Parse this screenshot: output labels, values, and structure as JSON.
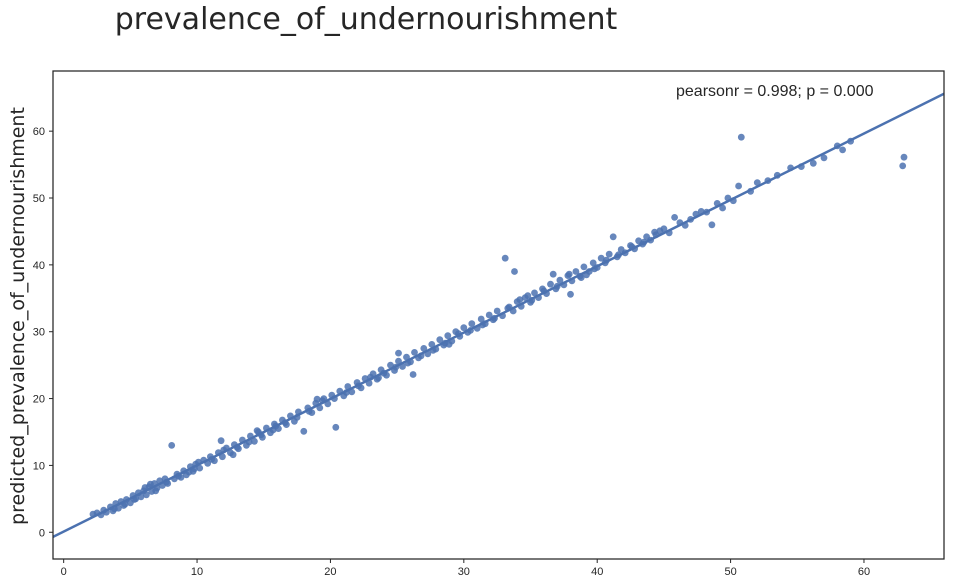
{
  "chart_data": {
    "type": "scatter",
    "title": "prevalence_of_undernourishment",
    "xlabel": "",
    "ylabel": "predicted_prevalence_of_undernourishment",
    "xlim": [
      -0.8,
      66
    ],
    "ylim": [
      -4,
      69
    ],
    "x_ticks": [
      0,
      10,
      20,
      30,
      40,
      50,
      60
    ],
    "y_ticks": [
      0,
      10,
      20,
      30,
      40,
      50,
      60
    ],
    "annotation": "pearsonr = 0.998; p = 0.000",
    "grid": false,
    "regression_line": {
      "x": [
        -0.8,
        66
      ],
      "y": [
        -0.7,
        65.6
      ]
    },
    "colors": {
      "points": "#4c72b0",
      "line": "#4c72b0",
      "axes": "#262626"
    },
    "points": [
      [
        2.2,
        2.7
      ],
      [
        2.5,
        2.9
      ],
      [
        2.8,
        2.6
      ],
      [
        3.0,
        3.3
      ],
      [
        3.2,
        3.0
      ],
      [
        3.5,
        3.8
      ],
      [
        3.7,
        3.2
      ],
      [
        3.9,
        4.3
      ],
      [
        4.1,
        3.6
      ],
      [
        4.3,
        4.6
      ],
      [
        4.5,
        4.0
      ],
      [
        4.7,
        4.9
      ],
      [
        5.0,
        4.4
      ],
      [
        5.2,
        5.5
      ],
      [
        5.4,
        5.0
      ],
      [
        5.6,
        5.9
      ],
      [
        5.8,
        5.3
      ],
      [
        6.0,
        6.2
      ],
      [
        6.2,
        5.6
      ],
      [
        6.4,
        6.8
      ],
      [
        6.6,
        6.1
      ],
      [
        6.8,
        7.3
      ],
      [
        7.0,
        6.6
      ],
      [
        7.2,
        7.7
      ],
      [
        7.4,
        7.0
      ],
      [
        7.6,
        8.0
      ],
      [
        7.8,
        7.3
      ],
      [
        8.1,
        13.0
      ],
      [
        8.3,
        8.0
      ],
      [
        8.5,
        8.7
      ],
      [
        8.8,
        8.2
      ],
      [
        9.0,
        9.2
      ],
      [
        9.2,
        8.6
      ],
      [
        9.5,
        9.8
      ],
      [
        9.7,
        9.1
      ],
      [
        9.9,
        10.2
      ],
      [
        10.2,
        9.6
      ],
      [
        10.5,
        10.8
      ],
      [
        10.8,
        10.3
      ],
      [
        11.0,
        11.3
      ],
      [
        11.3,
        10.7
      ],
      [
        11.6,
        11.9
      ],
      [
        11.9,
        11.3
      ],
      [
        12.2,
        12.6
      ],
      [
        12.5,
        11.9
      ],
      [
        12.8,
        13.1
      ],
      [
        13.1,
        12.5
      ],
      [
        13.4,
        13.8
      ],
      [
        13.7,
        13.0
      ],
      [
        14.0,
        14.4
      ],
      [
        14.3,
        13.6
      ],
      [
        14.6,
        15.0
      ],
      [
        14.9,
        14.2
      ],
      [
        15.2,
        15.6
      ],
      [
        15.5,
        14.9
      ],
      [
        15.8,
        16.2
      ],
      [
        16.1,
        15.5
      ],
      [
        16.4,
        16.8
      ],
      [
        16.7,
        16.1
      ],
      [
        17.0,
        17.4
      ],
      [
        17.3,
        16.6
      ],
      [
        17.6,
        18.0
      ],
      [
        18.0,
        15.1
      ],
      [
        18.3,
        18.6
      ],
      [
        18.6,
        17.9
      ],
      [
        18.9,
        19.3
      ],
      [
        19.2,
        18.6
      ],
      [
        19.5,
        20.0
      ],
      [
        19.8,
        19.2
      ],
      [
        20.1,
        20.5
      ],
      [
        20.4,
        15.7
      ],
      [
        20.7,
        21.1
      ],
      [
        21.0,
        20.4
      ],
      [
        21.3,
        21.8
      ],
      [
        21.6,
        21.0
      ],
      [
        22.0,
        22.4
      ],
      [
        22.3,
        21.6
      ],
      [
        22.6,
        23.0
      ],
      [
        22.9,
        22.3
      ],
      [
        23.2,
        23.7
      ],
      [
        23.5,
        22.9
      ],
      [
        23.8,
        24.3
      ],
      [
        24.2,
        23.5
      ],
      [
        24.5,
        25.0
      ],
      [
        24.8,
        24.2
      ],
      [
        25.1,
        25.6
      ],
      [
        25.4,
        24.8
      ],
      [
        25.7,
        26.2
      ],
      [
        26.0,
        25.5
      ],
      [
        26.3,
        26.9
      ],
      [
        26.6,
        26.1
      ],
      [
        27.0,
        27.5
      ],
      [
        27.3,
        26.7
      ],
      [
        27.6,
        28.1
      ],
      [
        27.9,
        27.4
      ],
      [
        28.2,
        28.8
      ],
      [
        28.5,
        28.0
      ],
      [
        28.8,
        29.4
      ],
      [
        29.1,
        28.6
      ],
      [
        29.4,
        30.0
      ],
      [
        29.7,
        29.3
      ],
      [
        30.0,
        30.6
      ],
      [
        30.3,
        29.9
      ],
      [
        30.6,
        31.2
      ],
      [
        31.0,
        30.5
      ],
      [
        31.3,
        31.9
      ],
      [
        31.6,
        31.2
      ],
      [
        31.9,
        32.5
      ],
      [
        32.2,
        31.8
      ],
      [
        32.5,
        33.1
      ],
      [
        32.9,
        32.4
      ],
      [
        33.1,
        41.0
      ],
      [
        33.4,
        33.7
      ],
      [
        33.7,
        33.1
      ],
      [
        34.0,
        34.5
      ],
      [
        34.3,
        33.8
      ],
      [
        34.6,
        35.1
      ],
      [
        35.0,
        34.4
      ],
      [
        35.3,
        35.8
      ],
      [
        35.6,
        35.1
      ],
      [
        35.9,
        36.4
      ],
      [
        36.2,
        35.7
      ],
      [
        36.5,
        37.1
      ],
      [
        36.9,
        36.4
      ],
      [
        37.2,
        37.7
      ],
      [
        37.5,
        37.0
      ],
      [
        37.8,
        38.4
      ],
      [
        38.1,
        37.6
      ],
      [
        38.4,
        39.0
      ],
      [
        38.7,
        38.3
      ],
      [
        39.0,
        39.7
      ],
      [
        39.4,
        39.0
      ],
      [
        39.7,
        40.3
      ],
      [
        40.0,
        39.6
      ],
      [
        40.3,
        41.0
      ],
      [
        40.6,
        40.3
      ],
      [
        40.9,
        41.6
      ],
      [
        41.2,
        44.2
      ],
      [
        41.5,
        41.2
      ],
      [
        41.8,
        42.3
      ],
      [
        42.1,
        41.8
      ],
      [
        42.5,
        42.9
      ],
      [
        42.8,
        42.4
      ],
      [
        43.1,
        43.6
      ],
      [
        43.4,
        43.1
      ],
      [
        43.7,
        44.2
      ],
      [
        44.0,
        43.7
      ],
      [
        44.3,
        44.9
      ],
      [
        44.7,
        45.1
      ],
      [
        45.0,
        45.4
      ],
      [
        45.4,
        44.8
      ],
      [
        45.8,
        47.1
      ],
      [
        46.2,
        46.3
      ],
      [
        46.6,
        45.9
      ],
      [
        47.0,
        46.8
      ],
      [
        47.4,
        47.6
      ],
      [
        47.8,
        48.0
      ],
      [
        48.2,
        47.9
      ],
      [
        48.6,
        46.0
      ],
      [
        49.0,
        49.2
      ],
      [
        49.4,
        48.5
      ],
      [
        49.8,
        50.0
      ],
      [
        50.2,
        49.6
      ],
      [
        50.6,
        51.8
      ],
      [
        50.8,
        59.1
      ],
      [
        51.5,
        51.0
      ],
      [
        52.0,
        52.3
      ],
      [
        52.8,
        52.6
      ],
      [
        53.5,
        53.4
      ],
      [
        54.5,
        54.5
      ],
      [
        55.3,
        54.7
      ],
      [
        56.2,
        55.2
      ],
      [
        57.0,
        56.0
      ],
      [
        58.0,
        57.8
      ],
      [
        58.4,
        57.2
      ],
      [
        59.0,
        58.5
      ],
      [
        62.9,
        54.8
      ],
      [
        63.0,
        56.1
      ],
      [
        3.8,
        3.5
      ],
      [
        4.6,
        4.2
      ],
      [
        5.3,
        4.9
      ],
      [
        6.1,
        6.7
      ],
      [
        6.9,
        6.2
      ],
      [
        7.7,
        7.5
      ],
      [
        8.6,
        8.4
      ],
      [
        9.4,
        9.0
      ],
      [
        10.1,
        10.5
      ],
      [
        11.1,
        10.9
      ],
      [
        12.0,
        12.3
      ],
      [
        13.0,
        12.7
      ],
      [
        13.9,
        13.5
      ],
      [
        14.8,
        14.6
      ],
      [
        15.7,
        15.3
      ],
      [
        16.6,
        16.4
      ],
      [
        17.5,
        17.2
      ],
      [
        18.4,
        18.1
      ],
      [
        19.4,
        19.7
      ],
      [
        20.3,
        20.0
      ],
      [
        21.2,
        20.9
      ],
      [
        22.1,
        21.9
      ],
      [
        23.0,
        23.2
      ],
      [
        24.0,
        23.8
      ],
      [
        24.9,
        24.7
      ],
      [
        25.8,
        25.3
      ],
      [
        26.8,
        26.4
      ],
      [
        27.7,
        27.2
      ],
      [
        28.6,
        28.3
      ],
      [
        29.6,
        29.7
      ],
      [
        30.5,
        30.2
      ],
      [
        31.4,
        31.0
      ],
      [
        32.3,
        32.0
      ],
      [
        33.3,
        33.5
      ],
      [
        34.2,
        34.8
      ],
      [
        35.1,
        34.7
      ],
      [
        36.0,
        36.1
      ],
      [
        37.0,
        36.8
      ],
      [
        37.9,
        38.6
      ],
      [
        38.8,
        38.1
      ],
      [
        39.8,
        39.4
      ],
      [
        40.7,
        40.7
      ],
      [
        41.6,
        41.5
      ],
      [
        42.6,
        42.7
      ],
      [
        43.5,
        43.4
      ],
      [
        44.4,
        44.5
      ],
      [
        6.5,
        7.2
      ],
      [
        9.8,
        9.5
      ],
      [
        14.5,
        15.2
      ],
      [
        19.0,
        19.9
      ],
      [
        23.6,
        23.1
      ],
      [
        28.9,
        28.1
      ],
      [
        34.8,
        35.4
      ],
      [
        39.2,
        38.5
      ],
      [
        33.8,
        39.0
      ],
      [
        36.7,
        38.6
      ],
      [
        38.0,
        35.6
      ],
      [
        26.2,
        23.6
      ],
      [
        25.1,
        26.8
      ],
      [
        15.9,
        15.9
      ],
      [
        12.7,
        11.6
      ],
      [
        11.8,
        13.7
      ]
    ]
  }
}
